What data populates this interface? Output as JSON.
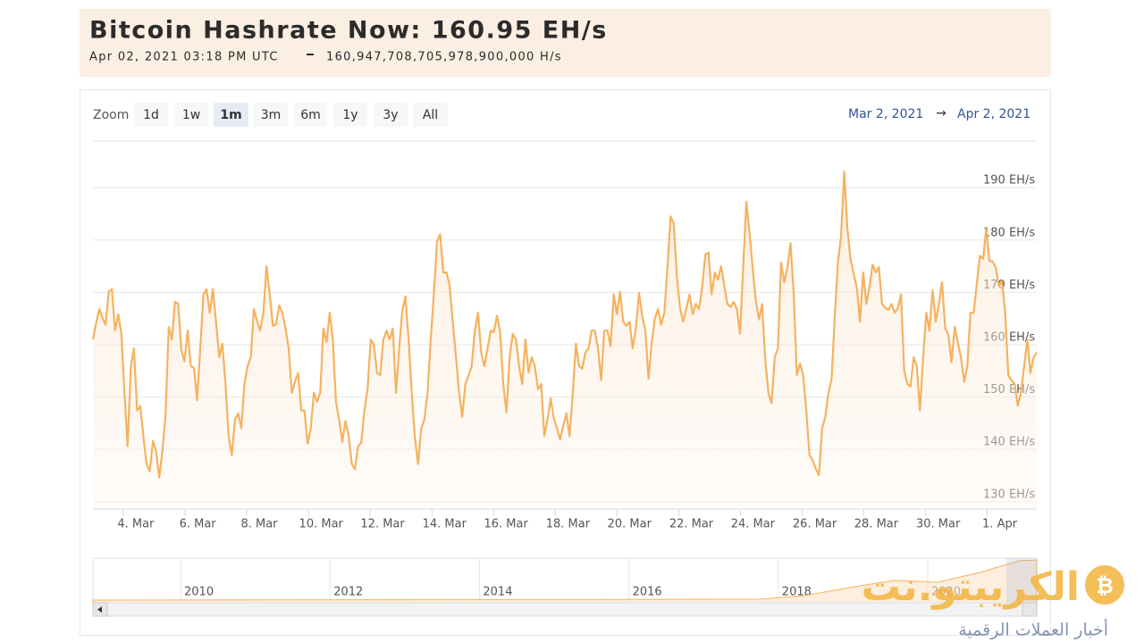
{
  "header": {
    "title": "Bitcoin Hashrate Now: 160.95 EH/s",
    "date": "Apr 02, 2021 03:18 PM UTC",
    "hashrate": "160,947,708,705,978,900,000 H/s"
  },
  "zoom": {
    "label": "Zoom",
    "buttons": [
      "1d",
      "1w",
      "1m",
      "3m",
      "6m",
      "1y",
      "3y",
      "All"
    ],
    "selected": 2
  },
  "range": {
    "from": "Mar 2, 2021",
    "separator": "→",
    "to": "Apr 2, 2021"
  },
  "navigator": {
    "years": [
      2010,
      2012,
      2014,
      2016,
      2018,
      2020
    ]
  },
  "watermark": {
    "name": "الكريبتو.نت",
    "tagline": "أخبار العملات الرقمية"
  },
  "chart_data": {
    "type": "line",
    "color": "#f5b25f",
    "grid": true,
    "xlim": [
      0,
      299
    ],
    "xticks": [
      {
        "value": 9.6,
        "label": "4. Mar"
      },
      {
        "value": 29.2,
        "label": "6. Mar"
      },
      {
        "value": 48.7,
        "label": "8. Mar"
      },
      {
        "value": 68.3,
        "label": "10. Mar"
      },
      {
        "value": 87.8,
        "label": "12. Mar"
      },
      {
        "value": 107.4,
        "label": "14. Mar"
      },
      {
        "value": 126.9,
        "label": "16. Mar"
      },
      {
        "value": 146.5,
        "label": "18. Mar"
      },
      {
        "value": 166.0,
        "label": "20. Mar"
      },
      {
        "value": 185.6,
        "label": "22. Mar"
      },
      {
        "value": 205.1,
        "label": "24. Mar"
      },
      {
        "value": 224.7,
        "label": "26. Mar"
      },
      {
        "value": 244.2,
        "label": "28. Mar"
      },
      {
        "value": 263.8,
        "label": "30. Mar"
      },
      {
        "value": 283.3,
        "label": "1. Apr"
      }
    ],
    "ylim": [
      128.6,
      198.9
    ],
    "yticks": [
      {
        "value": 130,
        "label": "130 EH/s"
      },
      {
        "value": 140,
        "label": "140 EH/s"
      },
      {
        "value": 150,
        "label": "150 EH/s"
      },
      {
        "value": 160,
        "label": "160 EH/s"
      },
      {
        "value": 170,
        "label": "170 EH/s"
      },
      {
        "value": 180,
        "label": "180 EH/s"
      },
      {
        "value": 190,
        "label": "190 EH/s"
      }
    ],
    "values": [
      161.0,
      164.1,
      166.8,
      165.1,
      163.8,
      170.2,
      170.6,
      162.7,
      165.8,
      162.1,
      150.8,
      140.6,
      155.9,
      159.3,
      147.4,
      148.3,
      142.3,
      137.2,
      135.8,
      141.6,
      139.7,
      134.6,
      139.7,
      146.5,
      163.4,
      161.0,
      168.2,
      167.8,
      159.0,
      156.8,
      162.7,
      155.9,
      155.6,
      149.4,
      159.3,
      169.6,
      170.6,
      166.1,
      170.6,
      164.4,
      157.6,
      160.2,
      152.5,
      142.3,
      138.9,
      145.7,
      146.9,
      144.0,
      152.5,
      155.9,
      157.6,
      166.8,
      164.4,
      162.7,
      166.1,
      175.0,
      169.6,
      163.6,
      163.9,
      167.5,
      166.1,
      163.1,
      159.3,
      150.8,
      152.9,
      154.6,
      147.4,
      147.4,
      141.1,
      144.0,
      150.8,
      149.1,
      150.8,
      163.1,
      160.5,
      166.1,
      161.0,
      149.1,
      145.7,
      141.4,
      145.4,
      142.6,
      137.2,
      136.2,
      140.6,
      141.3,
      147.4,
      151.5,
      161.0,
      160.0,
      154.6,
      154.2,
      161.0,
      162.7,
      161.0,
      163.1,
      150.8,
      159.3,
      166.5,
      169.2,
      161.0,
      150.8,
      142.3,
      137.2,
      144.0,
      145.7,
      150.8,
      161.0,
      169.6,
      179.8,
      181.1,
      173.8,
      173.8,
      171.3,
      164.4,
      157.6,
      150.8,
      146.2,
      152.5,
      154.2,
      155.9,
      162.7,
      166.1,
      158.5,
      155.9,
      159.3,
      162.7,
      162.4,
      165.5,
      162.4,
      152.5,
      147.1,
      157.6,
      162.1,
      161.0,
      155.9,
      152.5,
      161.0,
      154.7,
      157.6,
      155.9,
      151.5,
      152.5,
      142.6,
      145.7,
      149.8,
      146.0,
      144.0,
      141.9,
      144.5,
      146.9,
      142.5,
      150.5,
      160.2,
      155.9,
      155.4,
      158.5,
      159.3,
      162.7,
      162.7,
      159.3,
      153.2,
      162.7,
      162.7,
      159.7,
      169.6,
      165.8,
      170.1,
      164.4,
      163.6,
      164.4,
      159.3,
      163.1,
      169.9,
      165.5,
      162.7,
      153.5,
      160.2,
      165.0,
      166.8,
      163.8,
      166.1,
      174.7,
      184.5,
      183.2,
      173.0,
      167.0,
      164.4,
      167.0,
      169.6,
      165.8,
      167.8,
      166.8,
      170.9,
      177.2,
      177.6,
      169.6,
      173.8,
      172.4,
      175.0,
      171.3,
      167.8,
      167.2,
      168.2,
      166.8,
      162.1,
      174.7,
      187.3,
      181.5,
      174.7,
      168.4,
      164.8,
      167.8,
      156.9,
      150.8,
      148.8,
      157.6,
      159.3,
      175.7,
      171.9,
      174.7,
      179.4,
      169.6,
      154.2,
      156.4,
      154.2,
      147.4,
      138.9,
      137.9,
      136.3,
      135.1,
      144.0,
      146.2,
      150.8,
      153.4,
      165.3,
      175.7,
      180.6,
      193.1,
      182.2,
      176.4,
      173.5,
      170.9,
      164.4,
      173.8,
      167.8,
      170.9,
      175.3,
      173.8,
      174.8,
      167.8,
      167.0,
      166.7,
      167.8,
      166.1,
      167.0,
      169.6,
      155.1,
      152.5,
      152.0,
      157.6,
      155.9,
      147.4,
      157.6,
      166.1,
      162.7,
      170.4,
      164.4,
      167.8,
      171.9,
      163.1,
      161.9,
      156.6,
      163.4,
      160.4,
      157.6,
      152.9,
      155.9,
      166.1,
      166.1,
      171.6,
      177.0,
      176.4,
      182.2,
      176.0,
      175.9,
      174.7,
      171.3,
      172.1,
      166.1,
      154.2,
      153.2,
      152.5,
      148.3,
      150.8,
      155.9,
      161.0,
      154.6,
      157.6,
      158.5
    ]
  }
}
